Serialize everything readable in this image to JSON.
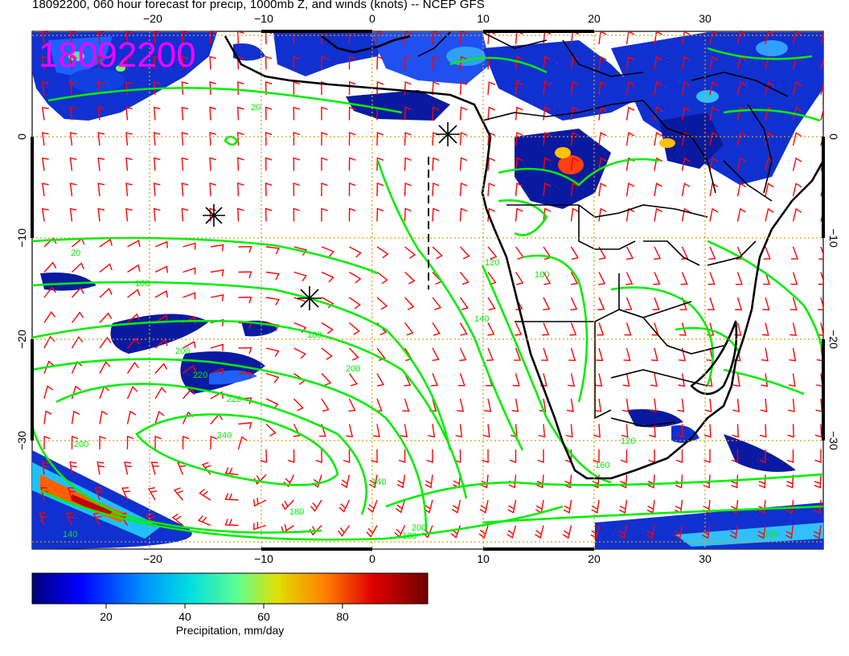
{
  "title": "18092200, 060 hour forecast for precip, 1000mb Z, and winds (knots) -- NCEP GFS",
  "stamp": "18092200",
  "lon_ticks": [
    "−20",
    "−10",
    "0",
    "10",
    "20",
    "30"
  ],
  "lat_ticks_left": [
    "0",
    "−10",
    "−20",
    "−30"
  ],
  "lat_ticks_right": [
    "0",
    "−10",
    "−20",
    "−30"
  ],
  "colorbar": {
    "label": "Precipitation, mm/day",
    "ticks": [
      "20",
      "40",
      "60",
      "80"
    ],
    "range": [
      0,
      100
    ],
    "colors": [
      "#000080",
      "#0000ff",
      "#0080ff",
      "#00ffff",
      "#80ff80",
      "#ffff00",
      "#ff8000",
      "#ff0000",
      "#800000"
    ]
  },
  "contour_labels": [
    "20",
    "20",
    "140",
    "140",
    "160",
    "180",
    "200",
    "200",
    "200",
    "220",
    "220",
    "240",
    "200",
    "180",
    "100",
    "120",
    "120",
    "140",
    "160",
    "180",
    "200"
  ],
  "colors": {
    "contour": "#00ee00",
    "barb": "#ff0000",
    "coast": "#000000",
    "grid": "#d4a017",
    "stamp": "#ff00ff"
  },
  "map": {
    "lon_range": [
      -30,
      40
    ],
    "lat_range": [
      -40,
      10
    ],
    "projection": "cylindrical"
  }
}
